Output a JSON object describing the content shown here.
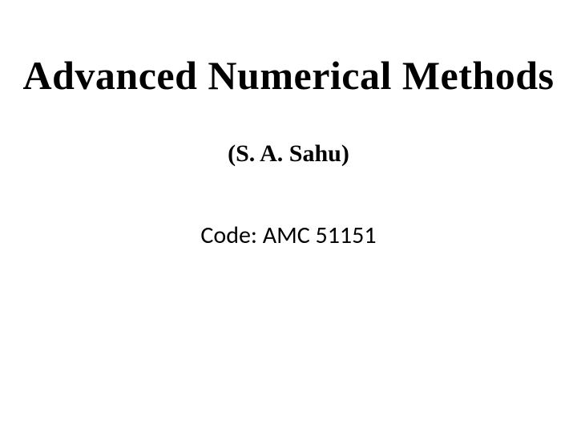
{
  "slide": {
    "title": "Advanced Numerical Methods",
    "author": "(S. A. Sahu)",
    "code": "Code:  AMC 51151",
    "background_color": "#ffffff",
    "text_color": "#000000",
    "title_fontsize": 50,
    "author_fontsize": 30,
    "code_fontsize": 30
  }
}
